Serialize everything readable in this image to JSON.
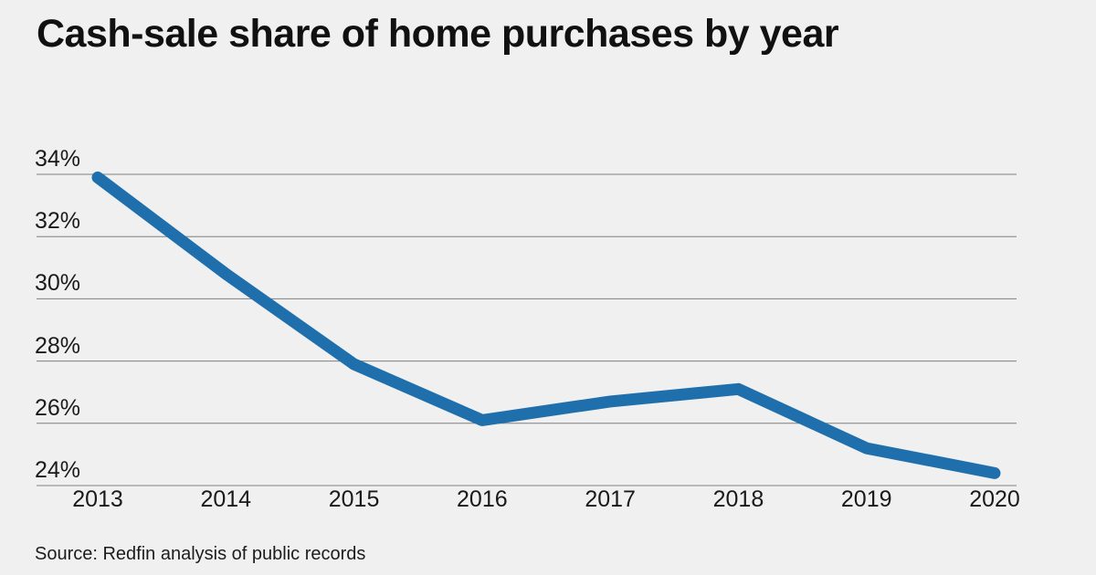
{
  "title": "Cash-sale share of home purchases by year",
  "source": "Source: Redfin analysis of public records",
  "colors": {
    "background": "#eff0ef",
    "line": "#1f6fad",
    "gridline": "#7f7f7f",
    "text": "#1a1a1a"
  },
  "chart_data": {
    "type": "line",
    "title": "Cash-sale share of home purchases by year",
    "x_labels": [
      "2013",
      "2014",
      "2015",
      "2016",
      "2017",
      "2018",
      "2019",
      "2020"
    ],
    "series": [
      {
        "name": "Cash-sale share of home purchases",
        "values": [
          33.9,
          30.8,
          27.9,
          26.1,
          26.7,
          27.1,
          25.2,
          24.4
        ]
      }
    ],
    "y_ticks": [
      {
        "label": "34%",
        "value": 34
      },
      {
        "label": "32%",
        "value": 32
      },
      {
        "label": "30%",
        "value": 30
      },
      {
        "label": "28%",
        "value": 28
      },
      {
        "label": "26%",
        "value": 26
      },
      {
        "label": "24%",
        "value": 24
      }
    ],
    "ylim": [
      24,
      34
    ],
    "unit": "%",
    "grid": "horizontal",
    "legend": "none",
    "source": "Source: Redfin analysis of public records"
  }
}
